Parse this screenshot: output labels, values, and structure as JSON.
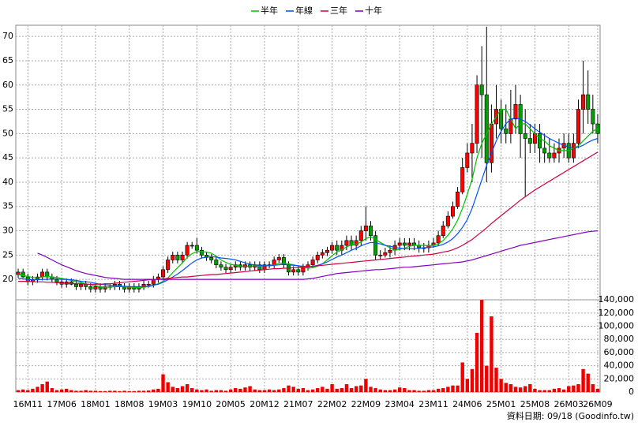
{
  "chart_data": {
    "type": "candlestick",
    "legend": "top",
    "grid": true,
    "up_color": "#ff0000",
    "down_color": "#00a000",
    "source": "資料日期: 09/18   (Goodinfo.tw)",
    "categories": [
      null,
      null,
      "16M11",
      null,
      null,
      null,
      null,
      null,
      null,
      "17M06",
      null,
      null,
      null,
      null,
      null,
      null,
      "18M01",
      null,
      null,
      null,
      null,
      null,
      null,
      "18M08",
      null,
      null,
      null,
      null,
      null,
      null,
      "19M03",
      null,
      null,
      null,
      null,
      null,
      null,
      "19M10",
      null,
      null,
      null,
      null,
      null,
      null,
      "20M05",
      null,
      null,
      null,
      null,
      null,
      null,
      "20M12",
      null,
      null,
      null,
      null,
      null,
      null,
      "21M07",
      null,
      null,
      null,
      null,
      null,
      null,
      "22M02",
      null,
      null,
      null,
      null,
      null,
      null,
      "22M09",
      null,
      null,
      null,
      null,
      null,
      null,
      "23M04",
      null,
      null,
      null,
      null,
      null,
      null,
      "23M11",
      null,
      null,
      null,
      null,
      null,
      null,
      "24M06",
      null,
      null,
      null,
      null,
      null,
      null,
      "25M01",
      null,
      null,
      null,
      null,
      null,
      null,
      "25M08",
      null,
      null,
      null,
      null,
      null,
      null,
      "26M03",
      null,
      null,
      null,
      null,
      null,
      "26M09"
    ],
    "open": [
      21,
      21.5,
      20.5,
      19.5,
      20,
      20.5,
      21.5,
      20.5,
      20,
      19.5,
      19,
      19.5,
      19,
      18.5,
      19,
      18.5,
      18,
      18.5,
      18,
      18.5,
      18.5,
      19,
      18.5,
      18,
      18.5,
      18,
      18.5,
      19,
      19,
      20,
      20.5,
      22,
      24,
      25,
      24,
      25,
      27,
      27,
      26,
      25,
      24.5,
      24,
      23,
      22.5,
      22,
      22.5,
      23,
      22.5,
      23,
      22.5,
      23,
      22,
      23,
      23,
      24,
      24.5,
      23,
      21.5,
      22,
      21.5,
      22.5,
      23,
      24,
      25,
      25.5,
      26,
      27,
      26,
      27,
      28,
      27,
      28,
      30,
      31,
      29,
      25,
      25,
      25.5,
      26,
      27,
      27.5,
      27,
      27.5,
      27,
      26.5,
      26.5,
      27,
      27.5,
      29,
      31,
      33,
      35,
      38,
      43,
      46,
      48,
      60,
      58,
      44,
      52,
      55,
      51,
      50,
      53,
      56,
      50,
      49,
      48,
      50,
      47,
      46,
      45,
      46,
      47,
      48,
      45,
      48,
      55,
      58,
      55,
      52
    ],
    "high": [
      22.2,
      22.2,
      21.2,
      20.7,
      21.2,
      22.2,
      22.2,
      21.2,
      20.7,
      20.2,
      20.2,
      20.2,
      19.7,
      19.7,
      19.7,
      19.2,
      19.2,
      19.2,
      19.2,
      19.2,
      19.7,
      19.7,
      19.2,
      19.2,
      19.2,
      19.2,
      19.7,
      19.7,
      20.7,
      21.2,
      22.7,
      24.7,
      25.7,
      25.7,
      25.7,
      27.7,
      27.7,
      28.5,
      26.7,
      25.7,
      25.2,
      24.7,
      23.7,
      23.2,
      23.2,
      23.7,
      23.7,
      23.7,
      23.7,
      23.7,
      23.7,
      23.7,
      23.7,
      24.7,
      25.2,
      25.2,
      23.7,
      22.7,
      22.7,
      23.2,
      23.7,
      24.7,
      25.7,
      26.2,
      26.7,
      27.7,
      28,
      28,
      29,
      29,
      29,
      31,
      35,
      32,
      30,
      26,
      26.5,
      27,
      28,
      28.5,
      28.5,
      28.5,
      28.5,
      28,
      27.5,
      28,
      28.5,
      30,
      32,
      34,
      36,
      39,
      45,
      48,
      52,
      62,
      68,
      72,
      56,
      60,
      57,
      56,
      59,
      60,
      58,
      55,
      52,
      52,
      52,
      50,
      49,
      48,
      49,
      50,
      50,
      50,
      57,
      65,
      63,
      58,
      54
    ],
    "low": [
      20.3,
      20.3,
      18.8,
      18.8,
      19.3,
      19.8,
      19.8,
      19.3,
      18.8,
      18.3,
      18.3,
      18.8,
      17.8,
      17.8,
      17.8,
      17.3,
      17.3,
      17.3,
      17.3,
      17.8,
      17.8,
      17.8,
      17.3,
      17.3,
      17.3,
      17.3,
      17.8,
      18.3,
      18.3,
      19.3,
      19.8,
      21.3,
      23.3,
      23.3,
      23.3,
      24.3,
      26.3,
      25.3,
      24.3,
      23.8,
      23.3,
      22.3,
      21.8,
      21.3,
      21.3,
      21.8,
      21.8,
      21.8,
      21.8,
      21.8,
      21.3,
      21.3,
      22.3,
      22.3,
      23.3,
      22.3,
      20.8,
      20.8,
      20.8,
      20.8,
      21.8,
      22.3,
      23.3,
      24.3,
      24.8,
      25.3,
      25,
      25,
      26,
      26,
      26,
      27,
      28,
      28,
      24,
      24,
      24.5,
      24.5,
      25,
      26,
      26,
      26,
      26,
      25.5,
      25.5,
      25.5,
      26.5,
      27,
      28.5,
      30.5,
      32.5,
      34.5,
      37.5,
      42,
      40,
      46,
      45,
      40,
      42,
      49,
      48,
      48,
      48,
      50,
      45,
      37,
      46,
      46,
      44,
      44,
      44,
      44,
      44,
      45,
      44,
      44,
      47,
      50,
      52,
      50,
      48
    ],
    "close": [
      21.5,
      20.5,
      19.5,
      20,
      20.5,
      21.5,
      20.5,
      20,
      19.5,
      19,
      19.5,
      19,
      18.5,
      19,
      18.5,
      18,
      18.5,
      18,
      18.5,
      18.5,
      19,
      18.5,
      18,
      18.5,
      18,
      18.5,
      19,
      19,
      20,
      20.5,
      22,
      24,
      25,
      24,
      25,
      27,
      27,
      26,
      25,
      24.5,
      24,
      23,
      22.5,
      22,
      22.5,
      23,
      22.5,
      23,
      22.5,
      23,
      22,
      23,
      23,
      24,
      24.5,
      23,
      21.5,
      22,
      21.5,
      22.5,
      23,
      24,
      25,
      25.5,
      26,
      27,
      26,
      27,
      28,
      27,
      28,
      30,
      31,
      29,
      25,
      25,
      25.5,
      26,
      27,
      27.5,
      27,
      27.5,
      27,
      26.5,
      26.5,
      27,
      27.5,
      29,
      31,
      33,
      35,
      38,
      43,
      46,
      48,
      60,
      58,
      44,
      52,
      55,
      51,
      50,
      53,
      56,
      50,
      49,
      48,
      50,
      47,
      46,
      45,
      46,
      47,
      48,
      45,
      48,
      55,
      58,
      55,
      52,
      50
    ],
    "ylim": [
      15.8,
      72.3
    ],
    "yticks": [
      20,
      25,
      30,
      35,
      40,
      45,
      50,
      55,
      60,
      65,
      70
    ],
    "series": [
      {
        "name": "半年",
        "color": "#00c000",
        "values": [
          21,
          20.8,
          20.6,
          20.4,
          20.3,
          20.5,
          20.6,
          20.5,
          20.4,
          20.2,
          20,
          19.8,
          19.5,
          19.3,
          19.1,
          18.9,
          18.7,
          18.5,
          18.4,
          18.4,
          18.5,
          18.5,
          18.5,
          18.4,
          18.4,
          18.3,
          18.4,
          18.5,
          18.8,
          19.1,
          19.6,
          20.3,
          21.4,
          22.4,
          23.4,
          24.5,
          25.3,
          25.7,
          25.7,
          25.6,
          25.4,
          24.8,
          24,
          23.5,
          23.1,
          22.9,
          22.7,
          22.7,
          22.7,
          22.8,
          22.7,
          22.8,
          22.8,
          23,
          23.3,
          23.4,
          23.2,
          23,
          22.8,
          22.5,
          22.3,
          22.4,
          22.7,
          23.2,
          24,
          24.9,
          25.6,
          26.1,
          26.7,
          27.1,
          27.2,
          27.7,
          28.4,
          28.8,
          28.2,
          27.6,
          27,
          26.5,
          26,
          26.2,
          26.4,
          26.8,
          27,
          27,
          27,
          26.9,
          27,
          27.3,
          28,
          29.1,
          30.4,
          32.2,
          34.6,
          37.5,
          40.6,
          45,
          48,
          50,
          52,
          53.5,
          55,
          55,
          53,
          51,
          52,
          52,
          51,
          50,
          49,
          48.5,
          47.5,
          47,
          46.5,
          46.5,
          46.5,
          47,
          47.5,
          48.5,
          49.5,
          50.5,
          51
        ]
      },
      {
        "name": "年線",
        "color": "#0050ff",
        "values": [
          20.2,
          20.1,
          20,
          19.9,
          19.9,
          20,
          20,
          20.1,
          20.1,
          20,
          20,
          19.9,
          19.8,
          19.6,
          19.5,
          19.4,
          19.2,
          19,
          18.9,
          18.8,
          18.7,
          18.6,
          18.6,
          18.5,
          18.5,
          18.5,
          18.5,
          18.6,
          18.8,
          19,
          19.4,
          19.9,
          20.5,
          21.1,
          21.8,
          22.6,
          23.4,
          24,
          24.4,
          24.6,
          24.7,
          24.6,
          24.4,
          24.3,
          24.2,
          24,
          23.7,
          23.4,
          23.1,
          23,
          22.9,
          22.8,
          22.8,
          22.9,
          23,
          23.1,
          23,
          22.9,
          22.8,
          22.7,
          22.6,
          22.7,
          22.9,
          23.2,
          23.6,
          24.1,
          24.6,
          25,
          25.5,
          26,
          26.4,
          26.9,
          27.3,
          27.6,
          27.5,
          27.3,
          27,
          26.8,
          26.6,
          26.4,
          26.3,
          26.3,
          26.3,
          26.4,
          26.5,
          26.6,
          26.7,
          26.9,
          27.2,
          27.7,
          28.4,
          29.4,
          30.7,
          32.3,
          34.6,
          37.5,
          40.5,
          43.5,
          46,
          48.5,
          50.5,
          52,
          53,
          53.2,
          53,
          52.5,
          51.8,
          51,
          50.3,
          49.6,
          49,
          48.5,
          48,
          47.6,
          47.2,
          47,
          47.2,
          47.6,
          48.2,
          48.7,
          49
        ]
      },
      {
        "name": "三年",
        "color": "#d00040",
        "values": [
          19.6,
          19.6,
          19.6,
          19.5,
          19.5,
          19.5,
          19.4,
          19.4,
          19.3,
          19.3,
          19.2,
          19.2,
          19.1,
          19.1,
          19,
          19,
          19,
          19,
          19.1,
          19.1,
          19.2,
          19.3,
          19.4,
          19.5,
          19.6,
          19.7,
          19.8,
          19.9,
          20,
          20,
          20.1,
          20.2,
          20.3,
          20.4,
          20.5,
          20.5,
          20.6,
          20.7,
          20.8,
          20.9,
          21,
          21,
          21.1,
          21.2,
          21.3,
          21.4,
          21.5,
          21.6,
          21.7,
          21.8,
          21.9,
          22,
          22.1,
          22.2,
          22.2,
          22.3,
          22.3,
          22.4,
          22.4,
          22.5,
          22.6,
          22.7,
          22.8,
          22.9,
          23,
          23.1,
          23.2,
          23.3,
          23.4,
          23.5,
          23.6,
          23.7,
          23.8,
          23.9,
          24,
          24.1,
          24.2,
          24.3,
          24.4,
          24.5,
          24.6,
          24.7,
          24.8,
          24.9,
          25,
          25.1,
          25.2,
          25.4,
          25.6,
          25.8,
          26.1,
          26.5,
          27,
          27.6,
          28.2,
          29,
          29.8,
          30.6,
          31.5,
          32.3,
          33.1,
          33.9,
          34.7,
          35.5,
          36.3,
          37,
          37.7,
          38.4,
          39,
          39.6,
          40.2,
          40.8,
          41.4,
          42,
          42.6,
          43.2,
          43.8,
          44.4,
          45,
          45.6,
          46.2
        ]
      },
      {
        "name": "十年",
        "color": "#8000c0",
        "values": [
          null,
          null,
          null,
          null,
          25.4,
          25,
          24.5,
          24,
          23.5,
          23,
          22.6,
          22.2,
          21.8,
          21.5,
          21.2,
          21,
          20.8,
          20.6,
          20.4,
          20.3,
          20.2,
          20.1,
          20,
          20,
          20,
          20,
          20,
          20,
          20,
          20,
          20,
          20,
          20,
          20,
          20,
          20,
          20,
          20,
          20,
          20,
          20,
          20,
          20,
          20,
          20,
          20,
          20,
          20,
          20,
          20,
          20,
          20,
          20,
          20,
          20,
          20,
          20,
          20,
          20,
          20,
          20.1,
          20.2,
          20.4,
          20.6,
          20.8,
          21,
          21.2,
          21.3,
          21.4,
          21.5,
          21.6,
          21.7,
          21.8,
          21.9,
          22,
          22,
          22.1,
          22.2,
          22.3,
          22.4,
          22.5,
          22.5,
          22.6,
          22.7,
          22.8,
          22.9,
          23,
          23.1,
          23.2,
          23.3,
          23.4,
          23.5,
          23.6,
          23.8,
          24,
          24.3,
          24.6,
          24.9,
          25.2,
          25.5,
          25.8,
          26.1,
          26.4,
          26.7,
          27,
          27.2,
          27.4,
          27.6,
          27.8,
          28,
          28.2,
          28.4,
          28.6,
          28.8,
          29,
          29.2,
          29.4,
          29.6,
          29.8,
          29.9,
          30
        ]
      }
    ],
    "volume": {
      "type": "bar",
      "color": "#ee0000",
      "ylim": [
        0,
        145000
      ],
      "yticks": [
        0,
        {
          "value": 20000,
          "label": "20,000"
        },
        {
          "value": 40000,
          "label": "40,000"
        },
        {
          "value": 60000,
          "label": "60,000"
        },
        {
          "value": 80000,
          "label": "80,000"
        },
        {
          "value": 100000,
          "label": "100,000"
        },
        {
          "value": 120000,
          "label": "120,000"
        },
        {
          "value": 140000,
          "label": "140,000"
        }
      ],
      "values": [
        3000,
        4000,
        3000,
        5000,
        8000,
        12000,
        16000,
        6000,
        3000,
        4000,
        5000,
        3000,
        2000,
        2000,
        3000,
        2000,
        2000,
        1500,
        1500,
        2000,
        2000,
        1500,
        2000,
        1500,
        1500,
        2000,
        2000,
        2500,
        4000,
        5000,
        27000,
        15000,
        8000,
        6000,
        9000,
        12000,
        6000,
        4000,
        3000,
        4000,
        2000,
        3000,
        3000,
        2000,
        4000,
        6000,
        5000,
        7000,
        9000,
        4000,
        3000,
        3000,
        4000,
        3000,
        4000,
        6000,
        10000,
        8000,
        5000,
        6000,
        3000,
        4000,
        6000,
        8000,
        5000,
        12000,
        5000,
        6000,
        12000,
        6000,
        9000,
        10000,
        20000,
        8000,
        6000,
        4000,
        3000,
        3000,
        4000,
        7000,
        6000,
        3000,
        3000,
        2000,
        2000,
        3000,
        3000,
        5000,
        6000,
        8000,
        10000,
        10000,
        45000,
        20000,
        35000,
        90000,
        140000,
        40000,
        115000,
        37000,
        20000,
        14000,
        12000,
        8000,
        7000,
        9000,
        12000,
        5000,
        3000,
        3000,
        3000,
        5000,
        6000,
        4000,
        9000,
        10000,
        12000,
        35000,
        28000,
        12000,
        5000
      ]
    }
  }
}
